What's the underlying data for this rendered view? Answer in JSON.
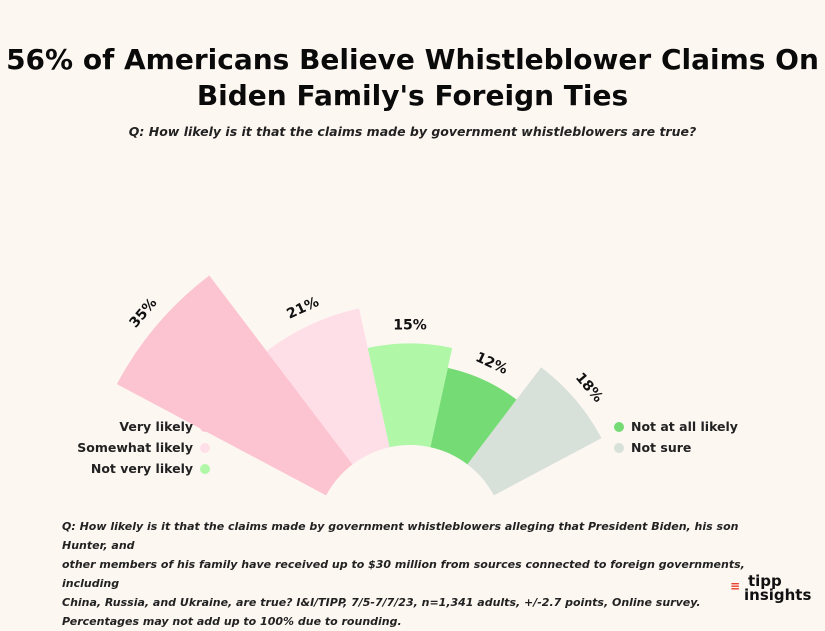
{
  "title_line1": "56% of Americans Believe Whistleblower Claims On",
  "title_line2": "Biden Family's Foreign Ties",
  "subtitle": "Q: How likely is it that the claims made by government whistleblowers are true?",
  "chart_data": {
    "type": "pie",
    "categories": [
      "Very likely",
      "Somewhat likely",
      "Not very likely",
      "Not at all likely",
      "Not sure"
    ],
    "values": [
      35,
      21,
      15,
      12,
      18
    ],
    "labels": [
      "35%",
      "21%",
      "15%",
      "12%",
      "18%"
    ],
    "colors": [
      "#fcc3d1",
      "#ffdfe7",
      "#b1f7a8",
      "#75db74",
      "#d7e0d9"
    ],
    "legend_placement": "split left and right"
  },
  "legend_left": [
    {
      "label": "Very likely",
      "color": "#fcc3d1"
    },
    {
      "label": "Somewhat likely",
      "color": "#ffdfe7"
    },
    {
      "label": "Not very likely",
      "color": "#b1f7a8"
    }
  ],
  "legend_right": [
    {
      "label": "Not at all likely",
      "color": "#75db74"
    },
    {
      "label": "Not sure",
      "color": "#d7e0d9"
    }
  ],
  "footnote_lines": [
    "Q: How likely is it that the claims made by government whistleblowers alleging that President Biden, his son Hunter, and",
    "other members of his family have received up to $30 million from sources connected to foreign governments, including",
    "China, Russia, and Ukraine, are true? I&I/TIPP, 7/5-7/7/23, n=1,341 adults, +/-2.7 points, Online survey.",
    "Percentages may not add up to 100% due to rounding."
  ],
  "logo": {
    "line1": "tipp",
    "line2": "insights",
    "mark": "≡"
  }
}
